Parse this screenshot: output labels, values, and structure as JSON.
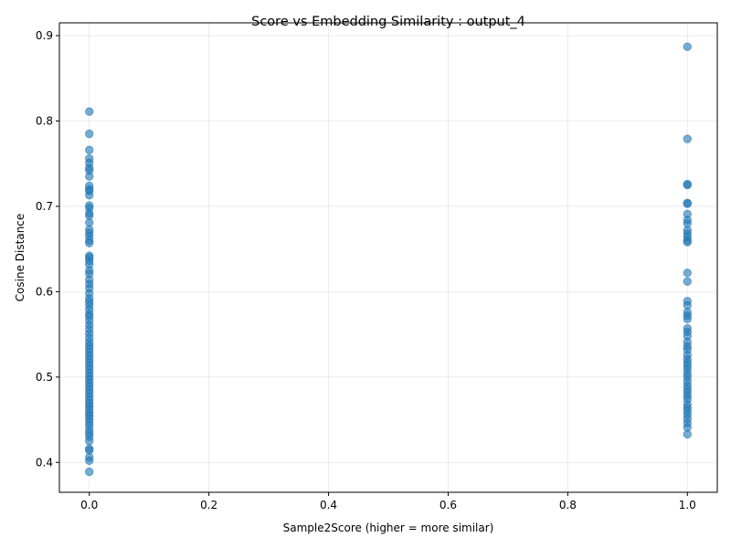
{
  "chart_data": {
    "type": "scatter",
    "title": "Score vs Embedding Similarity : output_4",
    "xlabel": "Sample2Score (higher = more similar)",
    "ylabel": "Cosine Distance",
    "xlim": [
      -0.05,
      1.05
    ],
    "ylim": [
      0.365,
      0.915
    ],
    "xticks": [
      0.0,
      0.2,
      0.4,
      0.6,
      0.8,
      1.0
    ],
    "xtick_labels": [
      "0.0",
      "0.2",
      "0.4",
      "0.6",
      "0.8",
      "1.0"
    ],
    "yticks": [
      0.4,
      0.5,
      0.6,
      0.7,
      0.8,
      0.9
    ],
    "ytick_labels": [
      "0.4",
      "0.5",
      "0.6",
      "0.7",
      "0.8",
      "0.9"
    ],
    "grid": true,
    "point_color": "#1f77b4",
    "point_alpha": 0.6,
    "series": [
      {
        "x": 0,
        "y": [
          0.811,
          0.785,
          0.766,
          0.756,
          0.751,
          0.745,
          0.742,
          0.735,
          0.724,
          0.72,
          0.718,
          0.713,
          0.701,
          0.698,
          0.692,
          0.689,
          0.681,
          0.673,
          0.669,
          0.665,
          0.66,
          0.657,
          0.642,
          0.64,
          0.636,
          0.632,
          0.625,
          0.621,
          0.614,
          0.609,
          0.604,
          0.598,
          0.592,
          0.588,
          0.584,
          0.579,
          0.574,
          0.571,
          0.566,
          0.561,
          0.556,
          0.551,
          0.546,
          0.541,
          0.537,
          0.533,
          0.529,
          0.525,
          0.521,
          0.517,
          0.513,
          0.509,
          0.505,
          0.501,
          0.497,
          0.493,
          0.489,
          0.485,
          0.481,
          0.477,
          0.473,
          0.469,
          0.466,
          0.462,
          0.458,
          0.455,
          0.451,
          0.447,
          0.443,
          0.438,
          0.434,
          0.43,
          0.425,
          0.416,
          0.414,
          0.406,
          0.402,
          0.389
        ]
      },
      {
        "x": 1,
        "y": [
          0.887,
          0.779,
          0.726,
          0.725,
          0.704,
          0.703,
          0.691,
          0.684,
          0.68,
          0.672,
          0.668,
          0.664,
          0.66,
          0.658,
          0.622,
          0.612,
          0.589,
          0.584,
          0.576,
          0.572,
          0.568,
          0.557,
          0.553,
          0.548,
          0.541,
          0.536,
          0.532,
          0.526,
          0.521,
          0.517,
          0.513,
          0.509,
          0.504,
          0.5,
          0.495,
          0.49,
          0.486,
          0.482,
          0.478,
          0.474,
          0.468,
          0.464,
          0.46,
          0.456,
          0.451,
          0.446,
          0.441,
          0.433
        ]
      }
    ]
  }
}
